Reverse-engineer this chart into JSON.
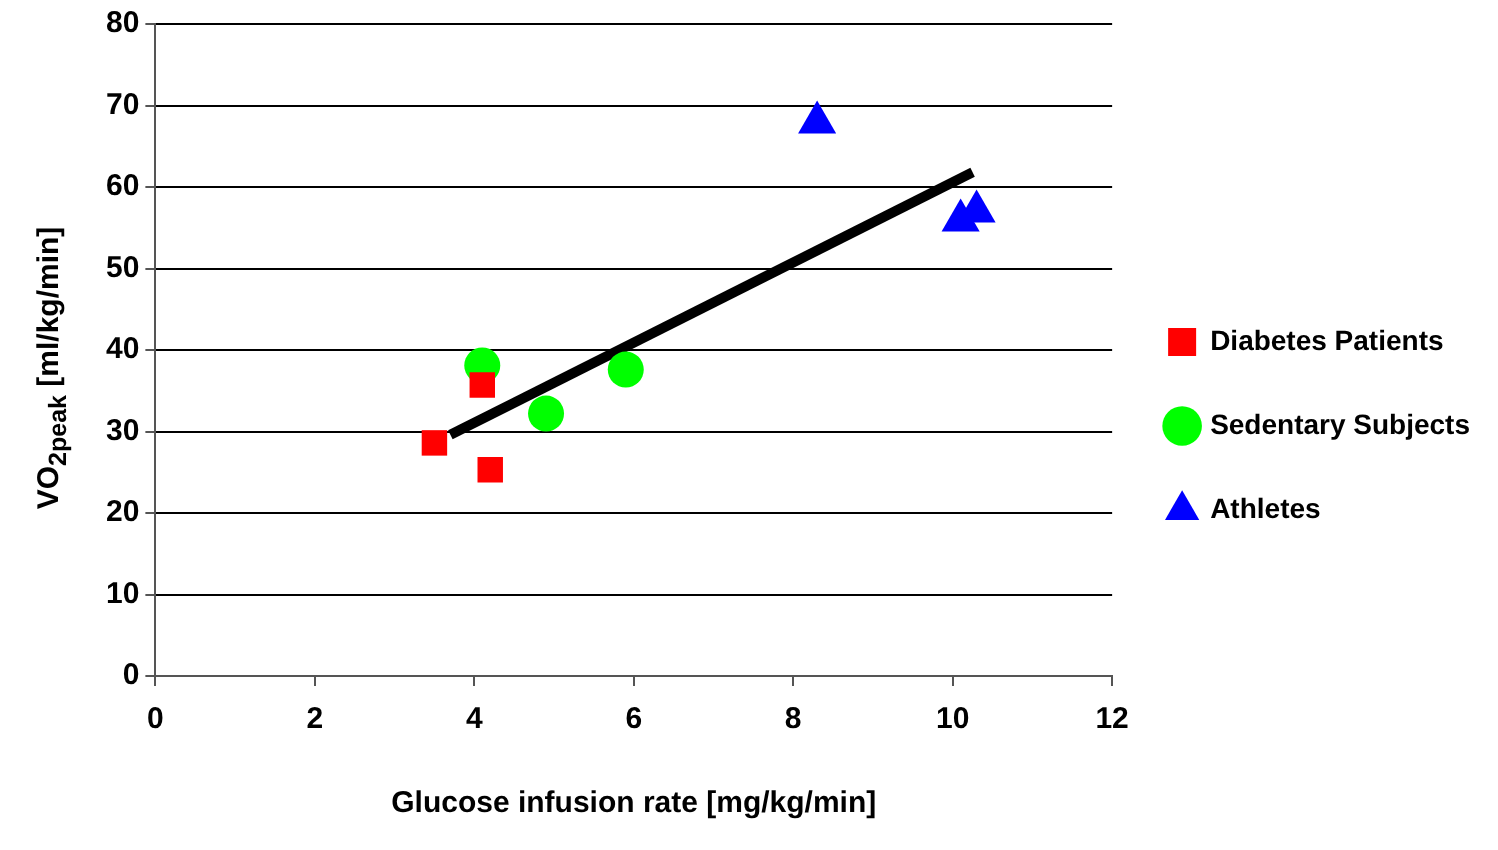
{
  "chart_data": {
    "type": "scatter",
    "xlabel": "Glucose infusion rate [mg/kg/min]",
    "ylabel": "VO$_{2peak}$ [ml/kg/min]",
    "xlim": [
      0,
      12
    ],
    "xticks": [
      0,
      2,
      4,
      6,
      8,
      10,
      12
    ],
    "ylim": [
      0,
      80
    ],
    "yticks": [
      0,
      10,
      20,
      30,
      40,
      50,
      60,
      70,
      80
    ],
    "grid": "y",
    "legend": "right",
    "series": [
      {
        "name": "Diabetes Patients",
        "color": "#ff0000",
        "marker": "square",
        "x": [
          3.5,
          4.1,
          4.2
        ],
        "values": [
          28.6,
          35.7,
          25.3
        ]
      },
      {
        "name": "Sedentary Subjects",
        "color": "#00ff00",
        "marker": "circle",
        "x": [
          4.1,
          4.9,
          5.9
        ],
        "values": [
          38.1,
          32.2,
          37.6
        ]
      },
      {
        "name": "Athletes",
        "color": "#0000ff",
        "marker": "triangle",
        "x": [
          8.3,
          10.1,
          10.3
        ],
        "values": [
          67.9,
          55.9,
          57
        ]
      },
      {
        "type": "line",
        "color": "#000000",
        "marker": "none",
        "x": [
          3.7,
          10.25
        ],
        "values": [
          29.6,
          61.8
        ]
      }
    ]
  }
}
